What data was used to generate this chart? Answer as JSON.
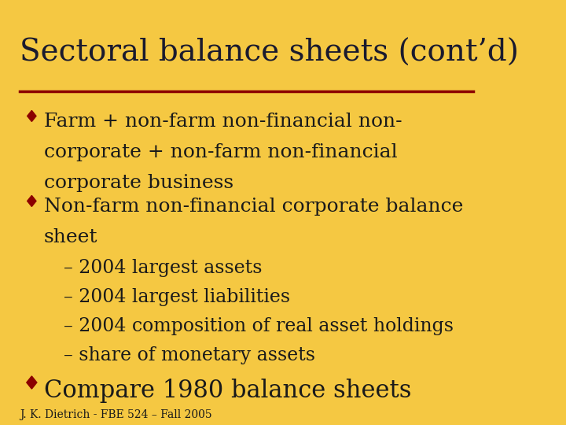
{
  "background_color": "#F5C842",
  "title": "Sectoral balance sheets (cont’d)",
  "title_color": "#1a1a2e",
  "title_fontsize": 28,
  "separator_color": "#8B0000",
  "bullet_color": "#8B0000",
  "text_color": "#1a1a1a",
  "footer": "J. K. Dietrich - FBE 524 – Fall 2005",
  "footer_fontsize": 10,
  "bullet1_line1": "Farm + non-farm non-financial non-",
  "bullet1_line2": "corporate + non-farm non-financial",
  "bullet1_line3": "corporate business",
  "bullet2_line1": "Non-farm non-financial corporate balance",
  "bullet2_line2": "sheet",
  "sub1": "– 2004 largest assets",
  "sub2": "– 2004 largest liabilities",
  "sub3": "– 2004 composition of real asset holdings",
  "sub4": "– share of monetary assets",
  "bullet3": "Compare 1980 balance sheets",
  "main_fontsize": 18,
  "sub_fontsize": 17,
  "bullet3_fontsize": 22
}
